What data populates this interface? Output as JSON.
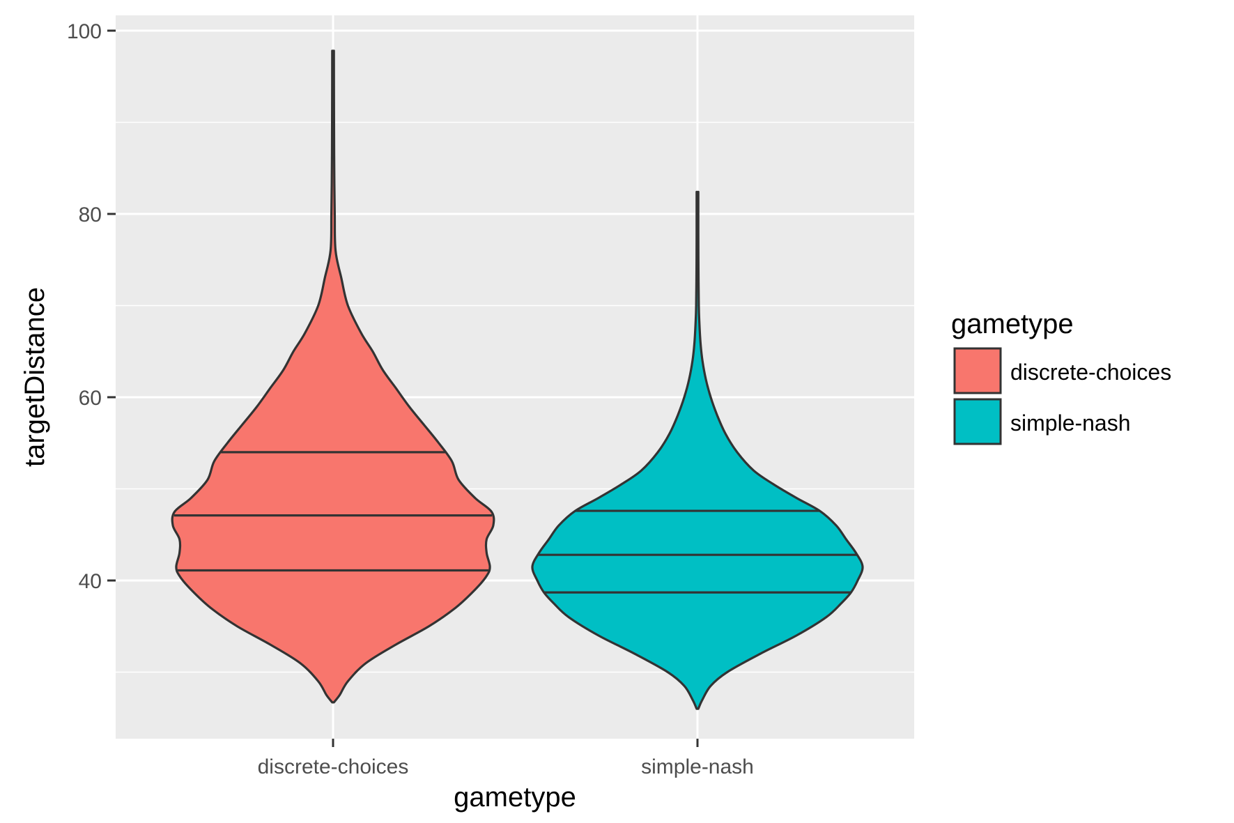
{
  "chart_data": {
    "type": "violin",
    "xlabel": "gametype",
    "ylabel": "targetDistance",
    "ylim": [
      23.4,
      101.8
    ],
    "yticks": [
      40,
      60,
      80,
      100
    ],
    "y_minor_gridlines": [
      30,
      50,
      70,
      90
    ],
    "grid": true,
    "categories": [
      "discrete-choices",
      "simple-nash"
    ],
    "legend": {
      "title": "gametype",
      "position": "right",
      "entries": [
        "discrete-choices",
        "simple-nash"
      ]
    },
    "colors": {
      "discrete-choices": "#F8766D",
      "simple-nash": "#00BFC4",
      "panel": "#EBEBEB",
      "outline": "#333333"
    },
    "series": [
      {
        "name": "discrete-choices",
        "min": 26.7,
        "max": 97.8,
        "quantiles": {
          "q25": 41.1,
          "median": 47.1,
          "q75": 54.0
        },
        "density_profile": [
          [
            26.7,
            0.0
          ],
          [
            27.5,
            0.04
          ],
          [
            29.0,
            0.09
          ],
          [
            31.0,
            0.2
          ],
          [
            33.0,
            0.38
          ],
          [
            35.0,
            0.58
          ],
          [
            37.0,
            0.74
          ],
          [
            39.0,
            0.86
          ],
          [
            40.5,
            0.93
          ],
          [
            41.5,
            0.95
          ],
          [
            43.0,
            0.93
          ],
          [
            44.5,
            0.93
          ],
          [
            46.0,
            0.97
          ],
          [
            47.5,
            0.96
          ],
          [
            49.0,
            0.86
          ],
          [
            51.0,
            0.76
          ],
          [
            53.0,
            0.72
          ],
          [
            55.0,
            0.64
          ],
          [
            57.0,
            0.55
          ],
          [
            59.0,
            0.46
          ],
          [
            61.0,
            0.38
          ],
          [
            63.0,
            0.3
          ],
          [
            65.0,
            0.24
          ],
          [
            67.0,
            0.17
          ],
          [
            70.0,
            0.09
          ],
          [
            73.0,
            0.05
          ],
          [
            76.0,
            0.015
          ],
          [
            80.0,
            0.01
          ],
          [
            85.0,
            0.007
          ],
          [
            90.0,
            0.006
          ],
          [
            97.8,
            0.005
          ]
        ]
      },
      {
        "name": "simple-nash",
        "min": 26.0,
        "max": 82.4,
        "quantiles": {
          "q25": 38.7,
          "median": 42.8,
          "q75": 47.6
        },
        "density_profile": [
          [
            26.0,
            0.0
          ],
          [
            27.0,
            0.03
          ],
          [
            28.5,
            0.08
          ],
          [
            30.0,
            0.18
          ],
          [
            32.0,
            0.38
          ],
          [
            34.0,
            0.6
          ],
          [
            36.0,
            0.78
          ],
          [
            37.5,
            0.87
          ],
          [
            38.7,
            0.93
          ],
          [
            40.0,
            0.97
          ],
          [
            41.5,
            1.0
          ],
          [
            43.0,
            0.96
          ],
          [
            44.5,
            0.9
          ],
          [
            46.0,
            0.84
          ],
          [
            47.6,
            0.74
          ],
          [
            49.0,
            0.6
          ],
          [
            50.5,
            0.46
          ],
          [
            52.0,
            0.34
          ],
          [
            54.0,
            0.24
          ],
          [
            56.0,
            0.17
          ],
          [
            58.0,
            0.12
          ],
          [
            60.0,
            0.08
          ],
          [
            62.0,
            0.05
          ],
          [
            64.0,
            0.03
          ],
          [
            66.0,
            0.018
          ],
          [
            68.0,
            0.012
          ],
          [
            70.0,
            0.008
          ],
          [
            74.0,
            0.006
          ],
          [
            78.0,
            0.005
          ],
          [
            82.4,
            0.004
          ]
        ]
      }
    ]
  }
}
